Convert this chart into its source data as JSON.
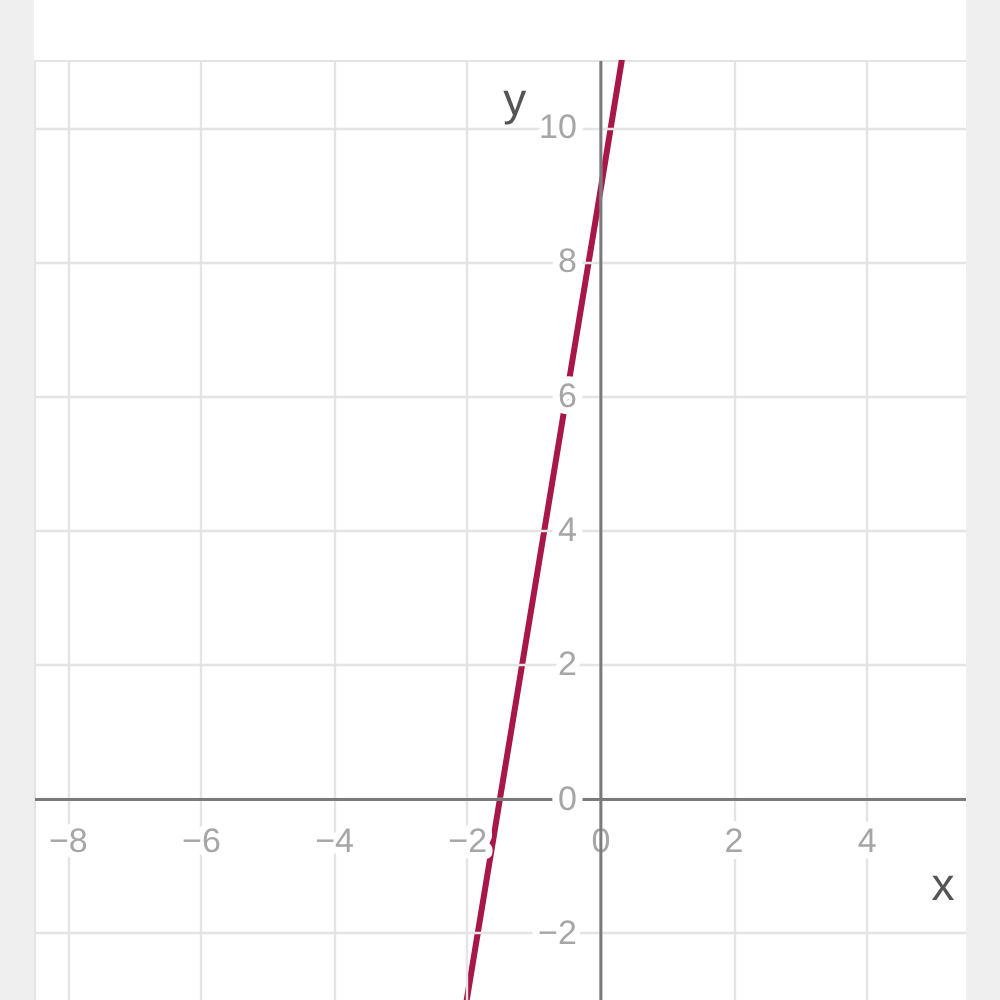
{
  "chart_data": {
    "type": "line",
    "xlabel": "x",
    "ylabel": "y",
    "x": [
      -2,
      -1.5,
      0,
      0.33
    ],
    "series": [
      {
        "color": "#a8174a",
        "values": [
          -3,
          0,
          9,
          11
        ]
      }
    ],
    "xlim": [
      -8.5,
      5.5
    ],
    "ylim": [
      -3,
      11
    ],
    "xticks": [
      -8,
      -6,
      -4,
      -2,
      0,
      2,
      4
    ],
    "yticks": [
      -2,
      0,
      2,
      4,
      6,
      8,
      10
    ],
    "grid": true
  }
}
